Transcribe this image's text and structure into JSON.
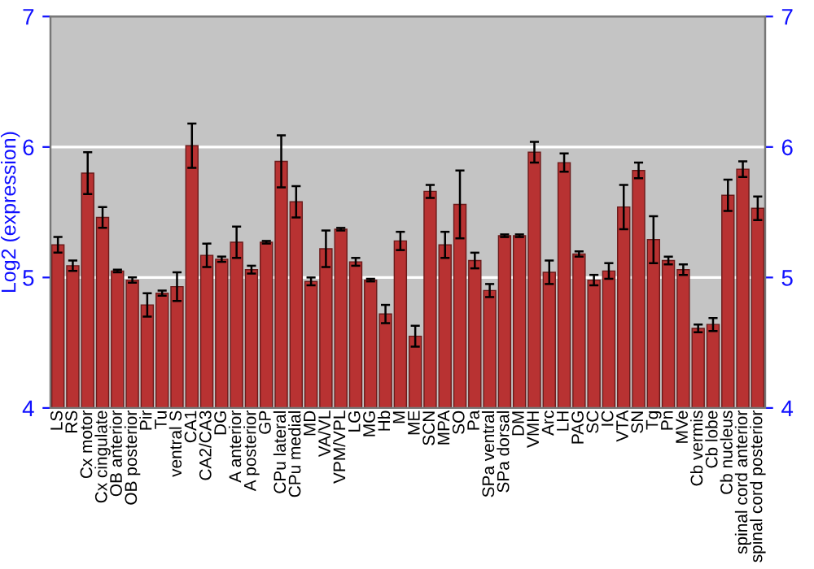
{
  "chart_data": {
    "type": "bar",
    "ylabel": "Log2 (expression)",
    "categories": [
      "LS",
      "RS",
      "Cx motor",
      "Cx cingulate",
      "OB anterior",
      "OB posterior",
      "Pir",
      "Tu",
      "ventral S",
      "CA1",
      "CA2/CA3",
      "DG",
      "A anterior",
      "A posterior",
      "GP",
      "CPu lateral",
      "CPu medial",
      "MD",
      "VA/VL",
      "VPM/VPL",
      "LG",
      "MG",
      "Hb",
      "M",
      "ME",
      "SCN",
      "MPA",
      "SO",
      "Pa",
      "SPa ventral",
      "SPa dorsal",
      "DM",
      "VMH",
      "Arc",
      "LH",
      "PAG",
      "SC",
      "IC",
      "VTA",
      "SN",
      "Tg",
      "Pn",
      "MVe",
      "Cb vermis",
      "Cb lobe",
      "Cb nucleus",
      "spinal cord anterior",
      "spinal cord posterior"
    ],
    "values": [
      5.25,
      5.09,
      5.8,
      5.46,
      5.05,
      4.98,
      4.79,
      4.88,
      4.93,
      6.01,
      5.17,
      5.14,
      5.27,
      5.06,
      5.27,
      5.89,
      5.58,
      4.97,
      5.22,
      5.37,
      5.12,
      4.98,
      4.72,
      5.28,
      4.55,
      5.66,
      5.25,
      5.56,
      5.13,
      4.9,
      5.32,
      5.32,
      5.96,
      5.04,
      5.88,
      5.18,
      4.98,
      5.05,
      5.54,
      5.82,
      5.29,
      5.13,
      5.06,
      4.61,
      4.64,
      5.63,
      5.83,
      5.53
    ],
    "errors": [
      0.06,
      0.04,
      0.16,
      0.08,
      0.01,
      0.02,
      0.09,
      0.02,
      0.11,
      0.17,
      0.09,
      0.02,
      0.12,
      0.03,
      0.01,
      0.2,
      0.12,
      0.03,
      0.14,
      0.01,
      0.03,
      0.01,
      0.07,
      0.07,
      0.08,
      0.05,
      0.1,
      0.26,
      0.06,
      0.05,
      0.01,
      0.01,
      0.08,
      0.09,
      0.07,
      0.02,
      0.04,
      0.06,
      0.17,
      0.06,
      0.18,
      0.03,
      0.04,
      0.03,
      0.05,
      0.12,
      0.06,
      0.09
    ],
    "color": "#b83232",
    "ylim": [
      4,
      7
    ],
    "yticks": [
      4,
      5,
      6,
      7
    ],
    "y2lim": [
      4,
      7
    ],
    "y2ticks": [
      4,
      5,
      6,
      7
    ],
    "grid": "y"
  }
}
